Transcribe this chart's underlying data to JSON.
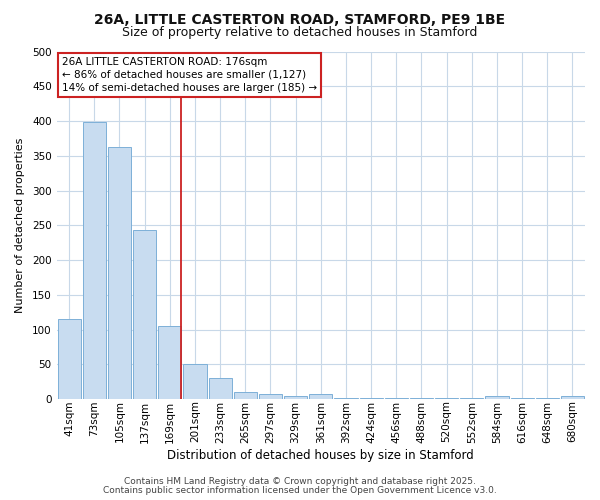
{
  "title_line1": "26A, LITTLE CASTERTON ROAD, STAMFORD, PE9 1BE",
  "title_line2": "Size of property relative to detached houses in Stamford",
  "xlabel": "Distribution of detached houses by size in Stamford",
  "ylabel": "Number of detached properties",
  "categories": [
    "41sqm",
    "73sqm",
    "105sqm",
    "137sqm",
    "169sqm",
    "201sqm",
    "233sqm",
    "265sqm",
    "297sqm",
    "329sqm",
    "361sqm",
    "392sqm",
    "424sqm",
    "456sqm",
    "488sqm",
    "520sqm",
    "552sqm",
    "584sqm",
    "616sqm",
    "648sqm",
    "680sqm"
  ],
  "values": [
    115,
    398,
    363,
    243,
    105,
    50,
    30,
    10,
    7,
    5,
    7,
    2,
    2,
    2,
    1,
    1,
    1,
    4,
    1,
    1,
    4
  ],
  "bar_color": "#c8dcf0",
  "bar_edge_color": "#7db0d8",
  "grid_color": "#c8d8e8",
  "bg_color": "#ffffff",
  "fig_bg_color": "#ffffff",
  "red_line_index": 4,
  "red_line_color": "#cc2222",
  "annotation_text": "26A LITTLE CASTERTON ROAD: 176sqm\n← 86% of detached houses are smaller (1,127)\n14% of semi-detached houses are larger (185) →",
  "annotation_box_edge_color": "#cc2222",
  "footnote1": "Contains HM Land Registry data © Crown copyright and database right 2025.",
  "footnote2": "Contains public sector information licensed under the Open Government Licence v3.0.",
  "ylim": [
    0,
    500
  ],
  "yticks": [
    0,
    50,
    100,
    150,
    200,
    250,
    300,
    350,
    400,
    450,
    500
  ],
  "title_fontsize": 10,
  "subtitle_fontsize": 9,
  "xlabel_fontsize": 8.5,
  "ylabel_fontsize": 8,
  "tick_fontsize": 7.5,
  "footnote_fontsize": 6.5,
  "annotation_fontsize": 7.5
}
